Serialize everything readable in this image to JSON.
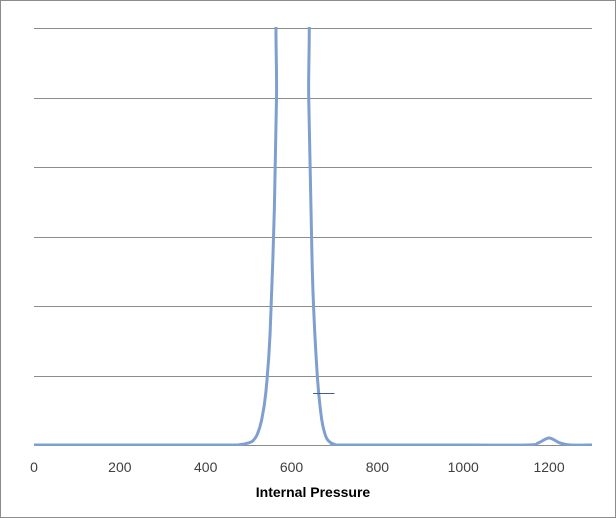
{
  "chart_data": {
    "type": "line",
    "title": "",
    "xlabel": "Internal Pressure",
    "ylabel": "",
    "xlim": [
      0,
      1300
    ],
    "ylim": [
      0,
      6
    ],
    "x_ticks": [
      0,
      200,
      400,
      600,
      800,
      1000,
      1200
    ],
    "y_ticks": [
      1,
      2,
      3,
      4,
      5,
      6
    ],
    "show_y_tick_labels": false,
    "grid": "horizontal",
    "legend": "none",
    "series_color": "#7f9fcf",
    "series": [
      {
        "values": [
          [
            0,
            0
          ],
          [
            440,
            0
          ],
          [
            480,
            0.005
          ],
          [
            500,
            0.03
          ],
          [
            510,
            0.06
          ],
          [
            520,
            0.15
          ],
          [
            530,
            0.35
          ],
          [
            540,
            0.75
          ],
          [
            550,
            1.6
          ],
          [
            560,
            3.4
          ],
          [
            565,
            5
          ],
          [
            570,
            6.5
          ],
          [
            635,
            6.5
          ],
          [
            640,
            5
          ],
          [
            645,
            3.5
          ],
          [
            650,
            2.2
          ],
          [
            660,
            1.0
          ],
          [
            670,
            0.38
          ],
          [
            680,
            0.12
          ],
          [
            690,
            0.04
          ],
          [
            700,
            0.01
          ],
          [
            720,
            0.0
          ],
          [
            1000,
            0
          ],
          [
            1150,
            0
          ],
          [
            1175,
            0.03
          ],
          [
            1200,
            0.1
          ],
          [
            1225,
            0.03
          ],
          [
            1250,
            0
          ],
          [
            1300,
            0
          ]
        ]
      }
    ],
    "annotations": [
      {
        "type": "horizontal-marker",
        "x": [
          650,
          700
        ],
        "y": 0.75
      }
    ]
  }
}
